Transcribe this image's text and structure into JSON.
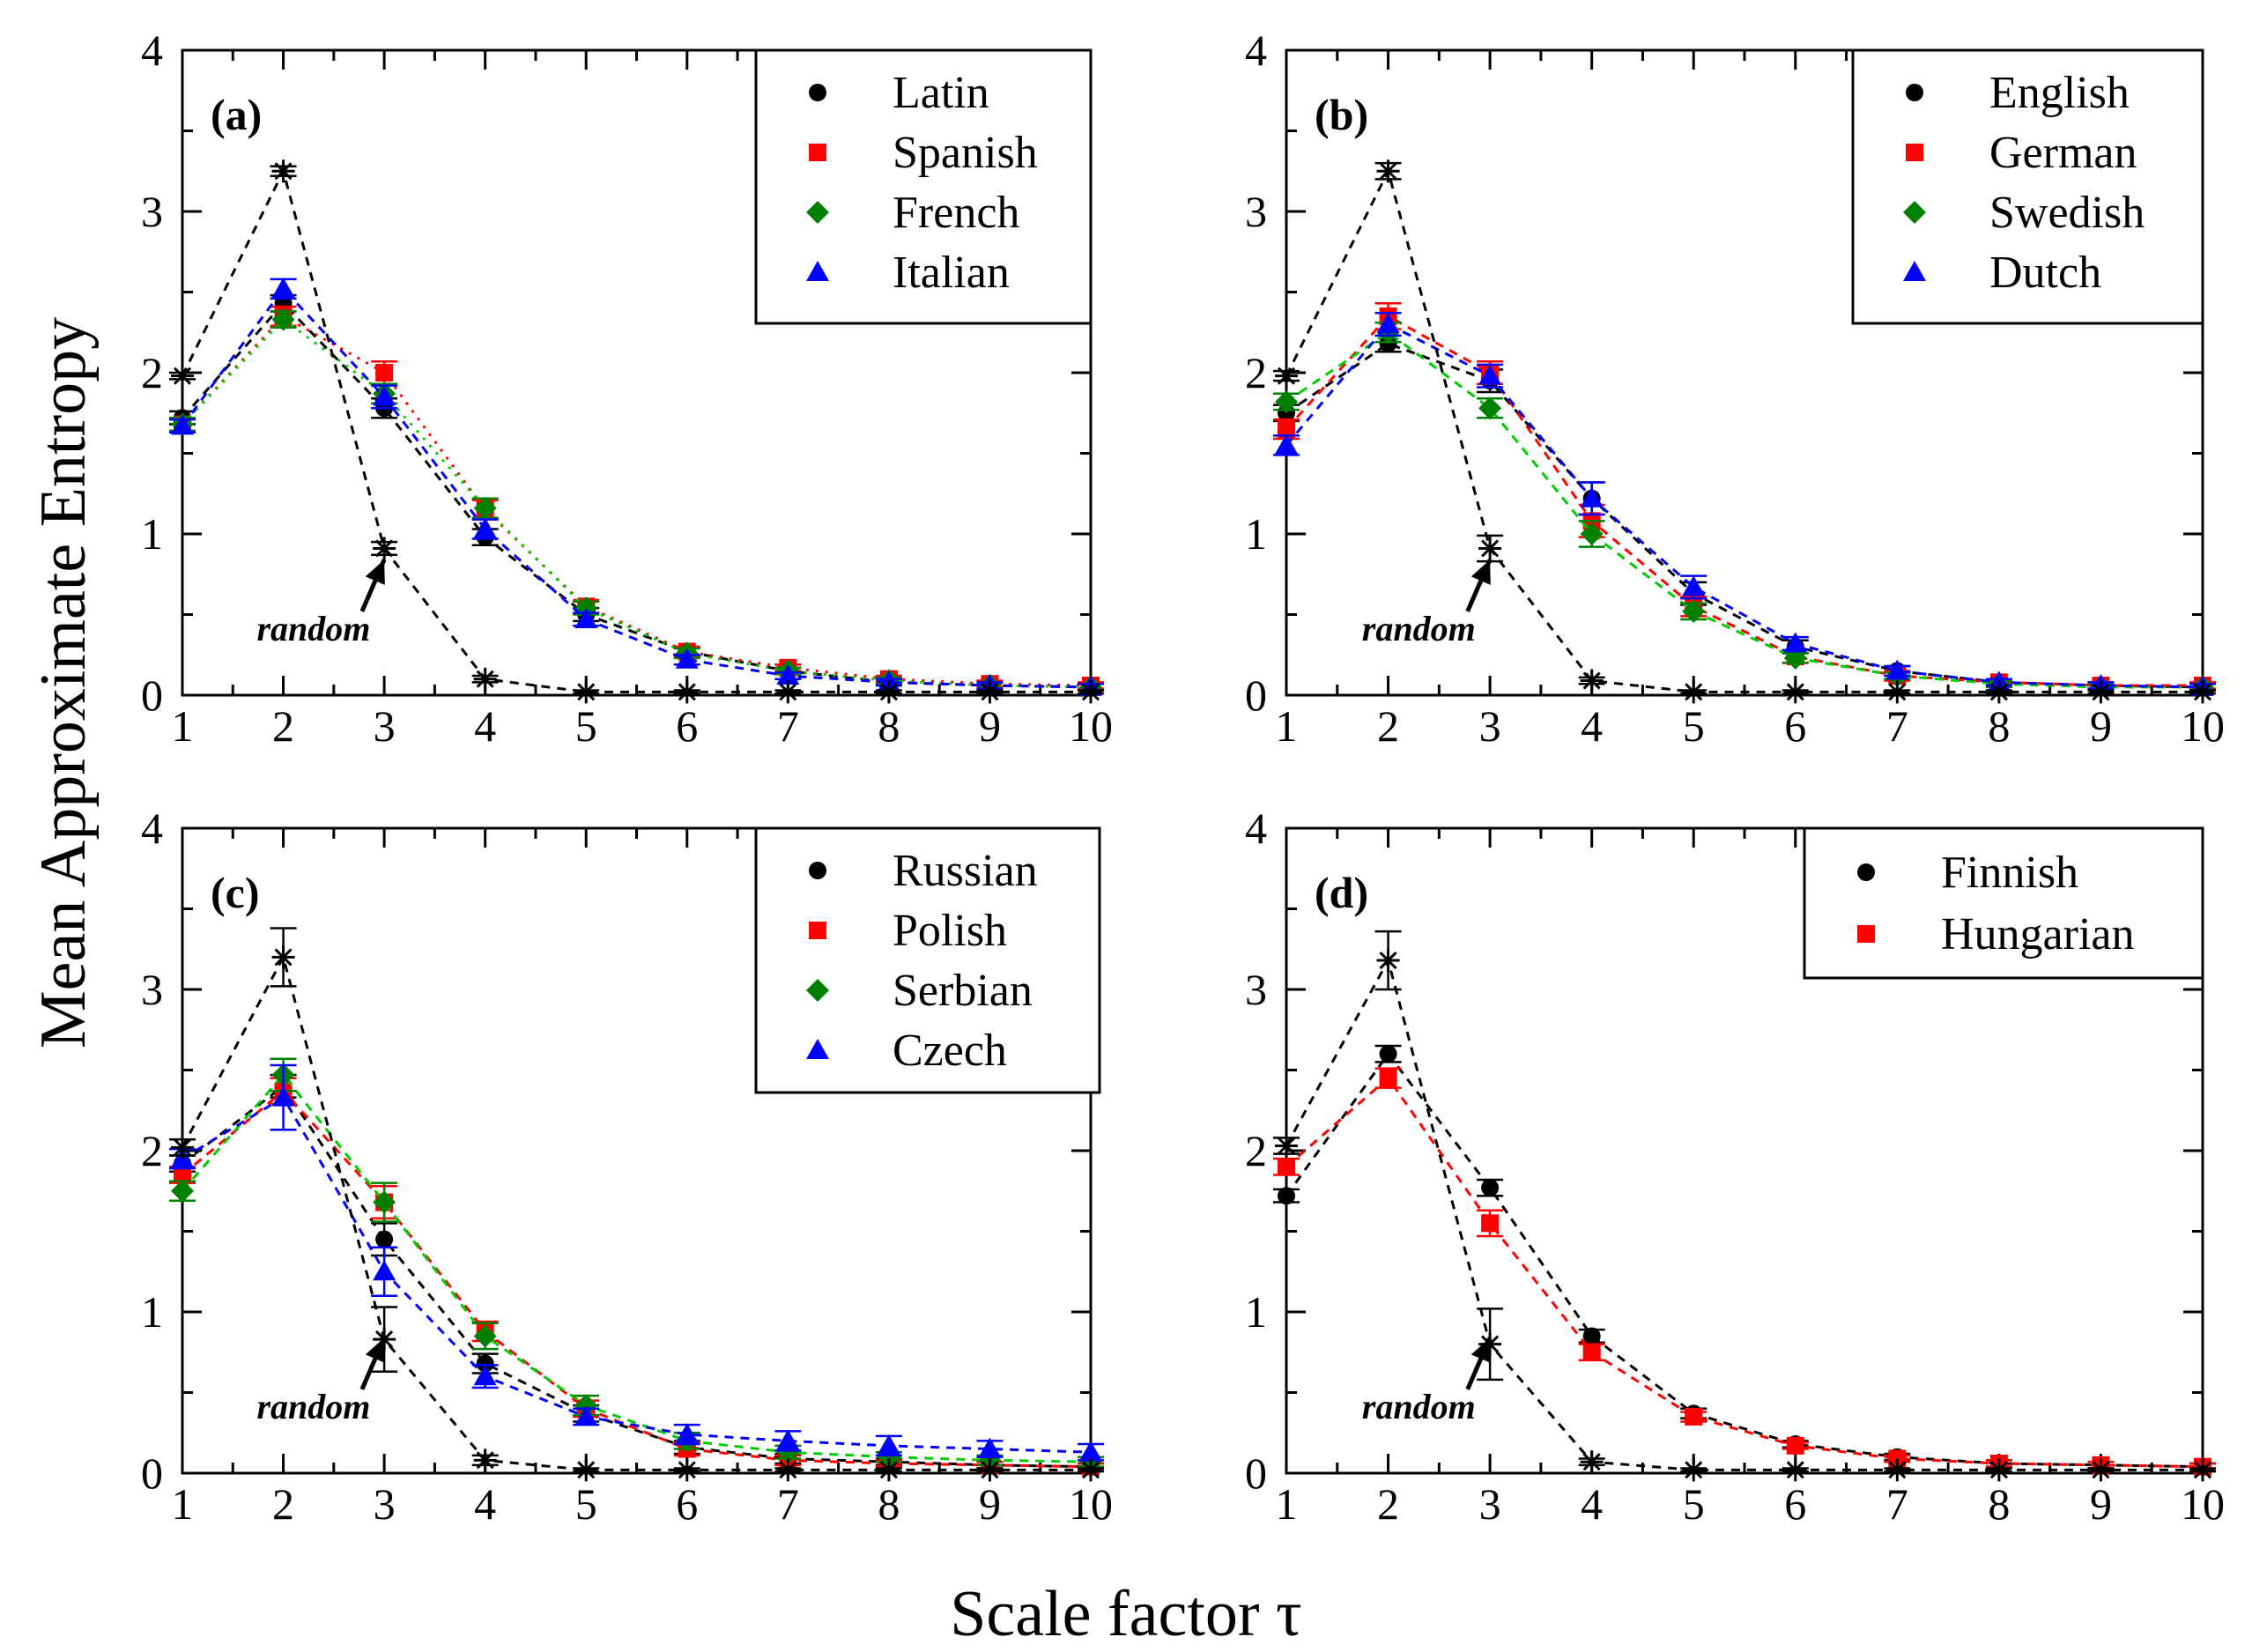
{
  "figure": {
    "xlabel": "Scale factor  τ",
    "ylabel": "Mean  Approximate Entropy",
    "annotation": "random"
  },
  "chart_data": [
    {
      "type": "line",
      "panel": "(a)",
      "x": [
        1,
        2,
        3,
        4,
        5,
        6,
        7,
        8,
        9,
        10
      ],
      "xlim": [
        1,
        10
      ],
      "ylim": [
        0,
        4
      ],
      "xticks": [
        "1",
        "2",
        "3",
        "4",
        "5",
        "6",
        "7",
        "8",
        "9",
        "10"
      ],
      "yticks": [
        "0",
        "1",
        "2",
        "3",
        "4"
      ],
      "legend_position": "top-right",
      "series": [
        {
          "name": "Latin",
          "marker": "circle",
          "color": "#000000",
          "line_color": "#000000",
          "dash": "10,8",
          "values": [
            1.72,
            2.43,
            1.78,
            0.98,
            0.5,
            0.27,
            0.15,
            0.08,
            0.06,
            0.05
          ],
          "errors": [
            0.04,
            0.05,
            0.06,
            0.05,
            0.04,
            0.03,
            0.02,
            0.02,
            0.02,
            0.02
          ]
        },
        {
          "name": "Spanish",
          "marker": "square",
          "color": "#ff0000",
          "line_color": "#ff0000",
          "dash": "3,8",
          "values": [
            1.68,
            2.35,
            2.0,
            1.15,
            0.55,
            0.27,
            0.17,
            0.1,
            0.07,
            0.06
          ],
          "errors": [
            0.04,
            0.06,
            0.07,
            0.06,
            0.04,
            0.03,
            0.02,
            0.02,
            0.02,
            0.02
          ]
        },
        {
          "name": "French",
          "marker": "diamond",
          "color": "#008000",
          "line_color": "#00cc00",
          "dash": "3,8",
          "values": [
            1.68,
            2.33,
            1.87,
            1.16,
            0.54,
            0.26,
            0.15,
            0.09,
            0.06,
            0.05
          ],
          "errors": [
            0.04,
            0.05,
            0.06,
            0.06,
            0.04,
            0.03,
            0.02,
            0.02,
            0.02,
            0.02
          ]
        },
        {
          "name": "Italian",
          "marker": "triangle",
          "color": "#0000ff",
          "line_color": "#0000ff",
          "dash": "10,8",
          "values": [
            1.67,
            2.52,
            1.85,
            1.03,
            0.47,
            0.22,
            0.12,
            0.08,
            0.06,
            0.05
          ],
          "errors": [
            0.04,
            0.06,
            0.07,
            0.06,
            0.04,
            0.03,
            0.02,
            0.02,
            0.02,
            0.02
          ]
        },
        {
          "name": "random",
          "marker": "asterisk",
          "color": "#000000",
          "line_color": "#000000",
          "dash": "10,8",
          "legend": false,
          "values": [
            1.98,
            3.25,
            0.91,
            0.1,
            0.02,
            0.02,
            0.02,
            0.02,
            0.02,
            0.02
          ],
          "errors": [
            0.02,
            0.03,
            0.04,
            0.02,
            0.01,
            0.01,
            0.01,
            0.01,
            0.01,
            0.01
          ]
        }
      ]
    },
    {
      "type": "line",
      "panel": "(b)",
      "x": [
        1,
        2,
        3,
        4,
        5,
        6,
        7,
        8,
        9,
        10
      ],
      "xlim": [
        1,
        10
      ],
      "ylim": [
        0,
        4
      ],
      "xticks": [
        "1",
        "2",
        "3",
        "4",
        "5",
        "6",
        "7",
        "8",
        "9",
        "10"
      ],
      "yticks": [
        "0",
        "1",
        "2",
        "3",
        "4"
      ],
      "legend_position": "top-right",
      "series": [
        {
          "name": "English",
          "marker": "circle",
          "color": "#000000",
          "line_color": "#000000",
          "dash": "10,8",
          "values": [
            1.75,
            2.18,
            1.95,
            1.22,
            0.63,
            0.3,
            0.15,
            0.08,
            0.06,
            0.05
          ],
          "errors": [
            0.05,
            0.05,
            0.07,
            0.1,
            0.07,
            0.04,
            0.03,
            0.02,
            0.02,
            0.02
          ]
        },
        {
          "name": "German",
          "marker": "square",
          "color": "#ff0000",
          "line_color": "#ff0000",
          "dash": "10,8",
          "values": [
            1.65,
            2.35,
            2.0,
            1.08,
            0.55,
            0.24,
            0.12,
            0.08,
            0.06,
            0.06
          ],
          "errors": [
            0.06,
            0.08,
            0.07,
            0.1,
            0.06,
            0.04,
            0.03,
            0.02,
            0.02,
            0.02
          ]
        },
        {
          "name": "Swedish",
          "marker": "diamond",
          "color": "#008000",
          "line_color": "#00cc00",
          "dash": "10,8",
          "values": [
            1.82,
            2.25,
            1.78,
            1.0,
            0.52,
            0.23,
            0.12,
            0.07,
            0.05,
            0.05
          ],
          "errors": [
            0.05,
            0.06,
            0.06,
            0.08,
            0.05,
            0.03,
            0.02,
            0.02,
            0.02,
            0.02
          ]
        },
        {
          "name": "Dutch",
          "marker": "triangle",
          "color": "#0000ff",
          "line_color": "#0000ff",
          "dash": "10,8",
          "values": [
            1.55,
            2.3,
            1.98,
            1.22,
            0.67,
            0.32,
            0.15,
            0.08,
            0.06,
            0.05
          ],
          "errors": [
            0.06,
            0.07,
            0.07,
            0.1,
            0.07,
            0.04,
            0.03,
            0.02,
            0.02,
            0.02
          ]
        },
        {
          "name": "random",
          "marker": "asterisk",
          "color": "#000000",
          "line_color": "#000000",
          "dash": "10,8",
          "legend": false,
          "values": [
            1.98,
            3.25,
            0.91,
            0.09,
            0.02,
            0.02,
            0.02,
            0.02,
            0.02,
            0.02
          ],
          "errors": [
            0.03,
            0.05,
            0.08,
            0.02,
            0.01,
            0.01,
            0.01,
            0.01,
            0.01,
            0.01
          ]
        }
      ]
    },
    {
      "type": "line",
      "panel": "(c)",
      "x": [
        1,
        2,
        3,
        4,
        5,
        6,
        7,
        8,
        9,
        10
      ],
      "xlim": [
        1,
        10
      ],
      "ylim": [
        0,
        4
      ],
      "xticks": [
        "1",
        "2",
        "3",
        "4",
        "5",
        "6",
        "7",
        "8",
        "9",
        "10"
      ],
      "yticks": [
        "0",
        "1",
        "2",
        "3",
        "4"
      ],
      "legend_position": "top-right",
      "series": [
        {
          "name": "Russian",
          "marker": "circle",
          "color": "#000000",
          "line_color": "#000000",
          "dash": "10,8",
          "values": [
            1.92,
            2.4,
            1.45,
            0.68,
            0.37,
            0.16,
            0.09,
            0.07,
            0.05,
            0.04
          ],
          "errors": [
            0.05,
            0.07,
            0.1,
            0.06,
            0.05,
            0.04,
            0.03,
            0.02,
            0.02,
            0.02
          ]
        },
        {
          "name": "Polish",
          "marker": "square",
          "color": "#ff0000",
          "line_color": "#ff0000",
          "dash": "10,8",
          "values": [
            1.85,
            2.37,
            1.68,
            0.88,
            0.4,
            0.15,
            0.08,
            0.06,
            0.05,
            0.04
          ],
          "errors": [
            0.05,
            0.08,
            0.1,
            0.06,
            0.05,
            0.04,
            0.03,
            0.02,
            0.02,
            0.02
          ]
        },
        {
          "name": "Serbian",
          "marker": "diamond",
          "color": "#008000",
          "line_color": "#00cc00",
          "dash": "10,8",
          "values": [
            1.75,
            2.47,
            1.68,
            0.85,
            0.42,
            0.2,
            0.13,
            0.1,
            0.08,
            0.07
          ],
          "errors": [
            0.06,
            0.1,
            0.12,
            0.08,
            0.06,
            0.05,
            0.04,
            0.03,
            0.03,
            0.03
          ]
        },
        {
          "name": "Czech",
          "marker": "triangle",
          "color": "#0000ff",
          "line_color": "#0000ff",
          "dash": "10,8",
          "values": [
            1.95,
            2.33,
            1.25,
            0.6,
            0.35,
            0.24,
            0.2,
            0.17,
            0.15,
            0.13
          ],
          "errors": [
            0.06,
            0.2,
            0.15,
            0.07,
            0.05,
            0.06,
            0.06,
            0.06,
            0.05,
            0.05
          ]
        },
        {
          "name": "random",
          "marker": "asterisk",
          "color": "#000000",
          "line_color": "#000000",
          "dash": "10,8",
          "legend": false,
          "values": [
            2.02,
            3.2,
            0.83,
            0.08,
            0.02,
            0.02,
            0.02,
            0.02,
            0.02,
            0.02
          ],
          "errors": [
            0.05,
            0.18,
            0.2,
            0.03,
            0.01,
            0.01,
            0.01,
            0.01,
            0.01,
            0.01
          ]
        }
      ]
    },
    {
      "type": "line",
      "panel": "(d)",
      "x": [
        1,
        2,
        3,
        4,
        5,
        6,
        7,
        8,
        9,
        10
      ],
      "xlim": [
        1,
        10
      ],
      "ylim": [
        0,
        4
      ],
      "xticks": [
        "1",
        "2",
        "3",
        "4",
        "5",
        "6",
        "7",
        "8",
        "9",
        "10"
      ],
      "yticks": [
        "0",
        "1",
        "2",
        "3",
        "4"
      ],
      "legend_position": "top-right",
      "series": [
        {
          "name": "Finnish",
          "marker": "circle",
          "color": "#000000",
          "line_color": "#000000",
          "dash": "10,8",
          "values": [
            1.72,
            2.6,
            1.77,
            0.85,
            0.37,
            0.18,
            0.1,
            0.06,
            0.05,
            0.04
          ],
          "errors": [
            0.04,
            0.05,
            0.05,
            0.04,
            0.03,
            0.02,
            0.02,
            0.02,
            0.02,
            0.02
          ]
        },
        {
          "name": "Hungarian",
          "marker": "square",
          "color": "#ff0000",
          "line_color": "#ff0000",
          "dash": "10,8",
          "values": [
            1.9,
            2.45,
            1.55,
            0.75,
            0.35,
            0.17,
            0.09,
            0.06,
            0.05,
            0.04
          ],
          "errors": [
            0.05,
            0.06,
            0.08,
            0.05,
            0.03,
            0.02,
            0.02,
            0.02,
            0.02,
            0.02
          ]
        },
        {
          "name": "random",
          "marker": "asterisk",
          "color": "#000000",
          "line_color": "#000000",
          "dash": "10,8",
          "legend": false,
          "values": [
            2.03,
            3.18,
            0.8,
            0.07,
            0.02,
            0.02,
            0.02,
            0.02,
            0.02,
            0.02
          ],
          "errors": [
            0.05,
            0.18,
            0.22,
            0.02,
            0.01,
            0.01,
            0.01,
            0.01,
            0.01,
            0.01
          ]
        }
      ]
    }
  ]
}
